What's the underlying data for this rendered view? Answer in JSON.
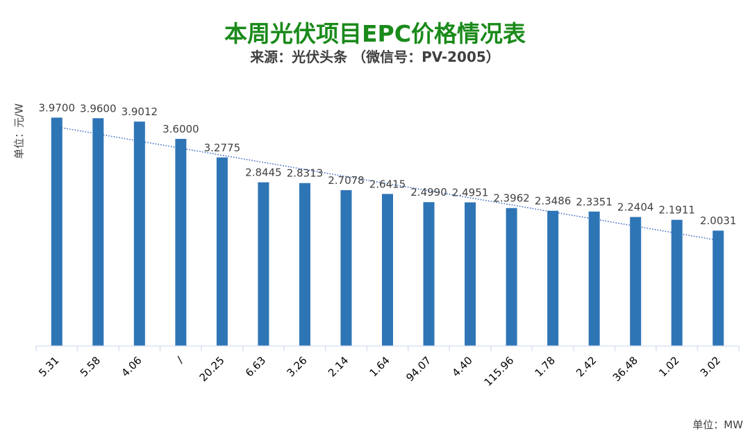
{
  "title": "本周光伏项目EPC价格情况表",
  "subtitle": "来源：光伏头条 （微信号：PV-2005）",
  "y_axis_label": "单位：元/W",
  "x_axis_unit": "单位：MW",
  "colors": {
    "title": "#1a8a1a",
    "bar": "#2e75b6",
    "trendline": "#4472c4",
    "axis": "#d9e1f2",
    "text": "#404040"
  },
  "chart_data": {
    "type": "bar",
    "title": "本周光伏项目EPC价格情况表",
    "subtitle": "来源：光伏头条 （微信号：PV-2005）",
    "xlabel": "单位：MW",
    "ylabel": "单位：元/W",
    "categories": [
      "5.31",
      "5.58",
      "4.06",
      "/",
      "20.25",
      "6.63",
      "3.26",
      "2.14",
      "1.64",
      "94.07",
      "4.40",
      "115.96",
      "1.78",
      "2.42",
      "36.48",
      "1.02",
      "3.02"
    ],
    "series": [
      {
        "name": "EPC价格",
        "values": [
          3.97,
          3.96,
          3.9012,
          3.6,
          3.2775,
          2.8445,
          2.8313,
          2.7078,
          2.6415,
          2.499,
          2.4951,
          2.3962,
          2.3486,
          2.3351,
          2.2404,
          2.1911,
          2.0031
        ],
        "value_labels": [
          "3.9700",
          "3.9600",
          "3.9012",
          "3.6000",
          "3.2775",
          "2.8445",
          "2.8313",
          "2.7078",
          "2.6415",
          "2.4990",
          "2.4951",
          "2.3962",
          "2.3486",
          "2.3351",
          "2.2404",
          "2.1911",
          "2.0031"
        ]
      }
    ],
    "trendline": {
      "type": "linear",
      "style": "dotted"
    },
    "ylim": [
      0,
      4
    ],
    "grid": false,
    "y_axis_visible": false,
    "legend": "none",
    "x_tick_rotation": -45
  }
}
